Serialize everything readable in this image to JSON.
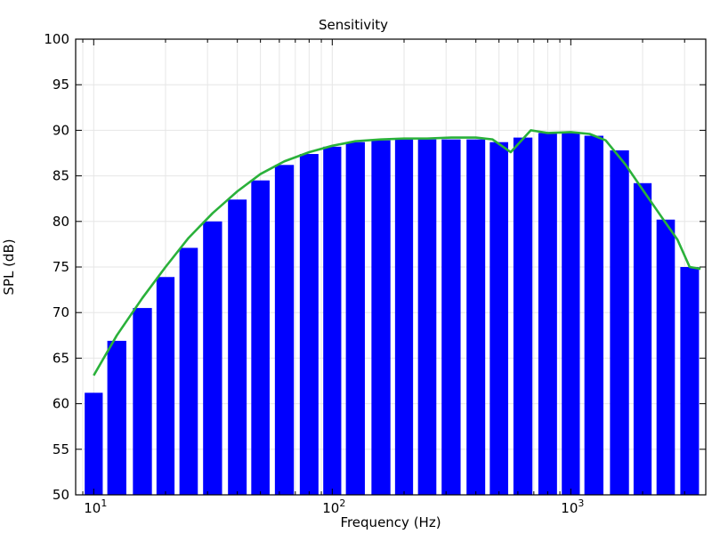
{
  "chart_data": {
    "type": "bar",
    "title": "Sensitivity",
    "xlabel": "Frequency (Hz)",
    "ylabel": "SPL (dB)",
    "xscale": "log",
    "xlim": [
      8.4,
      3680
    ],
    "ylim": [
      50,
      100
    ],
    "grid": true,
    "yticks": [
      "50",
      "55",
      "60",
      "65",
      "70",
      "75",
      "80",
      "85",
      "90",
      "95",
      "100"
    ],
    "xticks": [
      {
        "base": "10",
        "exp": "1",
        "value": 10
      },
      {
        "base": "10",
        "exp": "2",
        "value": 100
      },
      {
        "base": "10",
        "exp": "3",
        "value": 1000
      }
    ],
    "colors": {
      "bars": "#0000ff",
      "line": "#2ab13a"
    },
    "bars": {
      "x": [
        10,
        12.5,
        16,
        20,
        25,
        31.5,
        40,
        50,
        63,
        80,
        100,
        125,
        160,
        200,
        250,
        315,
        400,
        500,
        630,
        800,
        1000,
        1250,
        1600,
        2000,
        2500,
        3150
      ],
      "values": [
        61.2,
        66.9,
        70.5,
        73.9,
        77.1,
        80.0,
        82.4,
        84.5,
        86.2,
        87.4,
        88.2,
        88.7,
        88.9,
        89.0,
        89.0,
        89.0,
        89.0,
        88.7,
        89.2,
        89.7,
        89.7,
        89.4,
        87.8,
        84.2,
        80.2,
        75.0
      ]
    },
    "series": [
      {
        "type": "line",
        "x": [
          10,
          12.5,
          16,
          20,
          25,
          31.5,
          40,
          50,
          63,
          80,
          100,
          125,
          160,
          200,
          250,
          315,
          400,
          470,
          560,
          680,
          800,
          1000,
          1200,
          1400,
          1700,
          2000,
          2400,
          2800,
          3150,
          3500
        ],
        "values": [
          63.1,
          67.5,
          71.6,
          75.0,
          78.2,
          80.9,
          83.3,
          85.2,
          86.6,
          87.6,
          88.3,
          88.8,
          89.0,
          89.1,
          89.1,
          89.2,
          89.2,
          89.0,
          87.6,
          90.0,
          89.7,
          89.8,
          89.6,
          88.9,
          86.2,
          83.5,
          80.5,
          78.0,
          75.0,
          74.8
        ]
      }
    ]
  }
}
